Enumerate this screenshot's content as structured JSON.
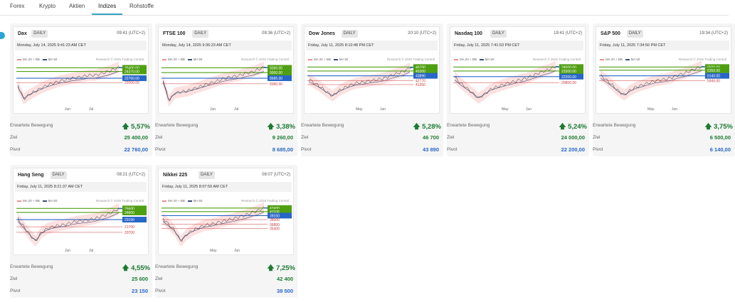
{
  "tabs": [
    {
      "label": "Forex"
    },
    {
      "label": "Krypto"
    },
    {
      "label": "Aktien"
    },
    {
      "label": "Indizes",
      "active": true
    },
    {
      "label": "Rohstoffe"
    }
  ],
  "labels": {
    "move": "Erwartete Bewegung",
    "target": "Ziel",
    "pivot": "Pivot",
    "legend_a": "MA 20 + BB",
    "legend_b": "MA 50",
    "research": "Research © 2025 Trading Central"
  },
  "colors": {
    "up": "#1c7a32",
    "accent": "#2866c7",
    "target_tag": "#4f9f12",
    "pivot_tag": "#2866c7",
    "support": "#c93a3a",
    "tab_underline": "#35a3c4"
  },
  "cards": [
    {
      "name": "Dax",
      "badge": "DAILY",
      "time": "09:41 (UTC+2)",
      "date": "Monday, July 14, 2025 9:41:23 AM CET",
      "x_ticks": [
        "Jun",
        "Jul"
      ],
      "level_tags": [
        "25400.00",
        "24370.00",
        "22760.00",
        "22000.00"
      ],
      "move": "5,57%",
      "target": "25 400,00",
      "pivot": "22 760,00"
    },
    {
      "name": "FTSE 100",
      "badge": "DAILY",
      "time": "09:36 (UTC+2)",
      "date": "Monday, July 14, 2025 9:36:23 AM CET",
      "x_ticks": [
        "Jun",
        "Jul"
      ],
      "level_tags": [
        "9260.00",
        "9000.00",
        "8685.00",
        "8380.00"
      ],
      "move": "3,38%",
      "target": "9 260,00",
      "pivot": "8 685,00"
    },
    {
      "name": "Dow Jones",
      "badge": "DAILY",
      "time": "20:10 (UTC+2)",
      "date": "Friday, July 11, 2025 8:10:48 PM CET",
      "x_ticks": [
        "May",
        "Jun"
      ],
      "level_tags": [
        "46700",
        "45300",
        "43890",
        "42770",
        "41350"
      ],
      "move": "5,28%",
      "target": "46 700",
      "pivot": "43 890"
    },
    {
      "name": "Nasdaq 100",
      "badge": "DAILY",
      "time": "19:41 (UTC+2)",
      "date": "Friday, July 11, 2025 7:41:53 PM CET",
      "x_ticks": [
        "May",
        "Jun"
      ],
      "level_tags": [
        "24000.00",
        "23300.00",
        "22200.00",
        "20800.00"
      ],
      "move": "5,24%",
      "target": "24 000,00",
      "pivot": "22 200,00"
    },
    {
      "name": "S&P 500",
      "badge": "DAILY",
      "time": "19:34 (UTC+2)",
      "date": "Friday, July 11, 2025 7:34:50 PM CET",
      "x_ticks": [
        "May",
        "Jun"
      ],
      "level_tags": [
        "6500.00",
        "6350.00",
        "6140.00",
        "5945.00"
      ],
      "move": "3,75%",
      "target": "6 500,00",
      "pivot": "6 140,00"
    },
    {
      "name": "Hang Seng",
      "badge": "DAILY",
      "time": "08:21 (UTC+2)",
      "date": "Friday, July 11, 2025 8:21:37 AM CET",
      "x_ticks": [
        "Jun",
        "Jul"
      ],
      "level_tags": [
        "25600",
        "24800",
        "23150",
        "21700",
        "20700"
      ],
      "move": "4,55%",
      "target": "25 600",
      "pivot": "23 150"
    },
    {
      "name": "Nikkei 225",
      "badge": "DAILY",
      "time": "08:07 (UTC+2)",
      "date": "Friday, July 11, 2025 8:07:59 AM CET",
      "x_ticks": [
        "May",
        "Jun"
      ],
      "level_tags": [
        "42400",
        "41100",
        "39150",
        "38500",
        "36800",
        "35400"
      ],
      "move": "7,25%",
      "target": "42 400",
      "pivot": "38 500"
    }
  ]
}
